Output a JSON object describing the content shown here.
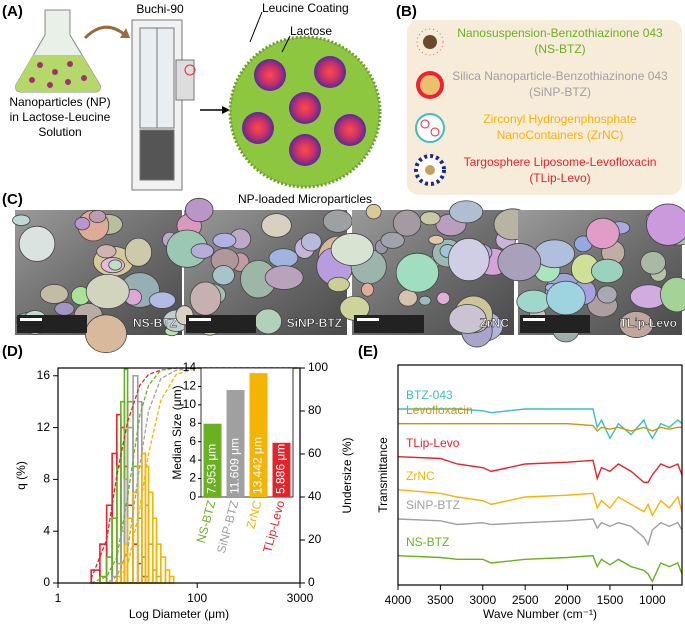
{
  "panel_labels": [
    "(A)",
    "(B)",
    "(C)",
    "(D)",
    "(E)"
  ],
  "panel_a": {
    "device": "Buchi-90",
    "coating": "Leucine Coating",
    "core": "Lactose",
    "input": [
      "Nanoparticles (NP)",
      "in Lactose-Leucine",
      "Solution"
    ],
    "output": "NP-loaded Microparticles"
  },
  "panel_b": {
    "items": [
      {
        "lines": [
          "Nanosuspension-Benzothiazinone 043",
          "(NS-BTZ)"
        ],
        "color": "#6ab023"
      },
      {
        "lines": [
          "Silica Nanoparticle-Benzothiazinone 043",
          "(SiNP-BTZ)"
        ],
        "color": "#a0a0a0"
      },
      {
        "lines": [
          "Zirconyl Hydrogenphosphate",
          "NanoContainers (ZrNC)"
        ],
        "color": "#f5b400"
      },
      {
        "lines": [
          "Targosphere Liposome-Levofloxacin",
          "(TLip-Levo)"
        ],
        "color": "#e3242b"
      }
    ]
  },
  "panel_c": {
    "images": [
      "NS-BTZ",
      "SiNP-BTZ",
      "ZrNC",
      "TLip-Levo"
    ]
  },
  "chart_data": [
    {
      "type": "histogram",
      "xlabel": "Log Diameter (μm)",
      "ylabel": "q (%)",
      "y2label": "Undersize (%)",
      "log_x": true,
      "xlim": [
        1,
        3000
      ],
      "xticks": [
        1,
        100,
        3000
      ],
      "ylim": [
        0,
        16.6
      ],
      "yticks": [
        0,
        4,
        8,
        12,
        16
      ],
      "y2lim": [
        0,
        100
      ],
      "y2ticks": [
        0,
        20,
        40,
        60,
        80,
        100
      ],
      "bins": [
        3,
        4,
        5,
        6,
        7,
        8,
        9,
        10,
        12,
        14,
        16,
        18,
        20,
        23,
        26,
        30,
        35,
        40,
        46,
        53,
        60,
        70,
        80
      ],
      "series": [
        {
          "color": "#e3242b",
          "values": [
            1,
            3,
            6,
            10,
            13,
            12,
            9,
            6,
            3,
            1.5,
            0.5,
            0,
            0,
            0,
            0,
            0,
            0,
            0,
            0,
            0,
            0,
            0
          ]
        },
        {
          "color": "#6ab023",
          "values": [
            0,
            0.5,
            2,
            5,
            9,
            14,
            16.5,
            14,
            9,
            5,
            2,
            0.5,
            0,
            0,
            0,
            0,
            0,
            0,
            0,
            0,
            0,
            0
          ]
        },
        {
          "color": "#a0a0a0",
          "values": [
            0,
            0,
            0,
            0.5,
            1.5,
            4,
            8,
            12,
            16,
            14,
            10,
            6,
            3,
            1,
            0.5,
            0,
            0,
            0,
            0,
            0,
            0,
            0
          ]
        },
        {
          "color": "#f5b400",
          "values": [
            0,
            0,
            0,
            0,
            0.5,
            1.5,
            3,
            5,
            7,
            9,
            10,
            9,
            7,
            5,
            3,
            2,
            1,
            0.5,
            0,
            0,
            0,
            0
          ]
        }
      ],
      "curve_x": [
        3,
        5,
        7,
        10,
        15,
        20,
        30,
        50,
        100,
        3000
      ],
      "curves": [
        {
          "color": "#e3242b",
          "axis": "y2",
          "values": [
            2,
            20,
            50,
            75,
            92,
            97,
            99,
            100,
            100,
            100
          ]
        },
        {
          "color": "#6ab023",
          "axis": "y2",
          "values": [
            0,
            3,
            12,
            40,
            78,
            92,
            99,
            100,
            100,
            100
          ]
        },
        {
          "color": "#a0a0a0",
          "axis": "y2",
          "values": [
            0,
            0,
            3,
            15,
            55,
            80,
            95,
            99,
            100,
            100
          ]
        },
        {
          "color": "#f5b400",
          "axis": "y2",
          "values": [
            0,
            0,
            1,
            8,
            35,
            60,
            85,
            97,
            100,
            100
          ]
        }
      ]
    },
    {
      "type": "bar",
      "ylabel": "Median Size (μm)",
      "categories": [
        "NS-BTZ",
        "SiNP-BTZ",
        "ZrNC",
        "TLip-Levo"
      ],
      "values": [
        7.953,
        11.609,
        13.442,
        5.886
      ],
      "value_labels": [
        "7.953 μm",
        "11.609 μm",
        "13.442 μm",
        "5.886 μm"
      ],
      "colors": [
        "#6ab023",
        "#a0a0a0",
        "#f5b400",
        "#e3242b"
      ],
      "ylim": [
        0,
        14
      ],
      "yticks": [
        0,
        2,
        4,
        6,
        8,
        10,
        12,
        14
      ]
    },
    {
      "type": "line",
      "xlabel": "Wave Number (cm⁻¹)",
      "ylabel": "Transmittance",
      "xlim": [
        4000,
        650
      ],
      "xticks": [
        4000,
        3500,
        3000,
        2500,
        2000,
        1500,
        1000
      ],
      "ylim": [
        0,
        6
      ],
      "x": [
        4000,
        3500,
        3300,
        3000,
        2900,
        2500,
        2000,
        1700,
        1650,
        1600,
        1500,
        1400,
        1250,
        1100,
        1050,
        1000,
        900,
        800,
        700,
        650
      ],
      "series": [
        {
          "name": "BTZ-043",
          "color": "#3cbfbf",
          "values": [
            4.8,
            4.8,
            4.8,
            4.75,
            4.7,
            4.8,
            4.8,
            4.8,
            4.3,
            4.5,
            4.0,
            4.4,
            4.1,
            4.5,
            4.2,
            4.0,
            4.4,
            4.3,
            4.5,
            4.4
          ]
        },
        {
          "name": "Levofloxacin",
          "color": "#c8960a",
          "values": [
            4.4,
            4.4,
            4.4,
            4.4,
            4.4,
            4.4,
            4.4,
            4.35,
            4.2,
            4.3,
            4.25,
            4.3,
            4.2,
            4.3,
            4.25,
            4.2,
            4.3,
            4.25,
            4.3,
            4.3
          ]
        },
        {
          "name": "TLip-Levo",
          "color": "#e3242b",
          "values": [
            3.5,
            3.45,
            3.3,
            3.2,
            3.1,
            3.3,
            3.35,
            3.4,
            2.9,
            3.2,
            3.1,
            3.3,
            3.1,
            2.8,
            2.8,
            3.0,
            3.3,
            3.2,
            3.3,
            3.0
          ]
        },
        {
          "name": "ZrNC",
          "color": "#f5b400",
          "values": [
            2.6,
            2.5,
            2.4,
            2.3,
            2.2,
            2.4,
            2.45,
            2.5,
            2.1,
            2.3,
            2.1,
            2.4,
            2.2,
            2.0,
            2.2,
            1.9,
            2.3,
            2.1,
            2.4,
            2.0
          ]
        },
        {
          "name": "SiNP-BTZ",
          "color": "#a0a0a0",
          "values": [
            1.8,
            1.75,
            1.65,
            1.7,
            1.65,
            1.7,
            1.75,
            1.8,
            1.55,
            1.7,
            1.6,
            1.7,
            1.6,
            1.3,
            1.1,
            1.5,
            1.7,
            1.6,
            1.7,
            1.5
          ]
        },
        {
          "name": "NS-BTZ",
          "color": "#6ab023",
          "values": [
            0.8,
            0.75,
            0.7,
            0.7,
            0.6,
            0.7,
            0.75,
            0.8,
            0.5,
            0.7,
            0.55,
            0.7,
            0.5,
            0.4,
            0.3,
            0.1,
            0.6,
            0.5,
            0.6,
            0.3
          ]
        }
      ]
    }
  ]
}
